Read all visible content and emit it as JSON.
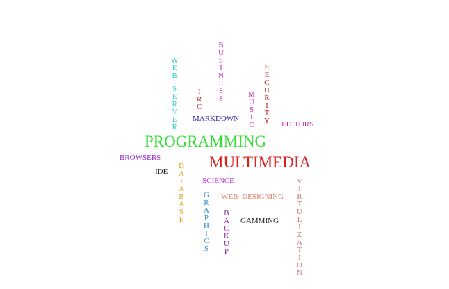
{
  "words": [
    {
      "id": "programming",
      "text": "PROGRAMMING",
      "color": "#33e033",
      "orientation": "horizontal"
    },
    {
      "id": "multimedia",
      "text": "MULTIMEDIA",
      "color": "#dd1f1f",
      "orientation": "horizontal"
    },
    {
      "id": "markdown",
      "text": "MARKDOWN",
      "color": "#2222aa",
      "orientation": "horizontal"
    },
    {
      "id": "editors",
      "text": "EDITORS",
      "color": "#cc22aa",
      "orientation": "horizontal"
    },
    {
      "id": "browsers",
      "text": "BROWSERS",
      "color": "#9922cc",
      "orientation": "horizontal"
    },
    {
      "id": "ide",
      "text": "IDE",
      "color": "#222222",
      "orientation": "horizontal"
    },
    {
      "id": "science",
      "text": "SCIENCE",
      "color": "#bb22dd",
      "orientation": "horizontal"
    },
    {
      "id": "web-designing",
      "text": "WEB DESIGNING",
      "color": "#e07a6a",
      "orientation": "horizontal"
    },
    {
      "id": "gamming",
      "text": "GAMMING",
      "color": "#222222",
      "orientation": "horizontal"
    },
    {
      "id": "web-server",
      "text": "WEB SERVER",
      "color": "#33cccc",
      "orientation": "vertical"
    },
    {
      "id": "business",
      "text": "BUSINESS",
      "color": "#cc33cc",
      "orientation": "vertical"
    },
    {
      "id": "irc",
      "text": "IRC",
      "color": "#cc2222",
      "orientation": "vertical"
    },
    {
      "id": "music",
      "text": "MUSIC",
      "color": "#cc2299",
      "orientation": "vertical"
    },
    {
      "id": "security",
      "text": "SECURITY",
      "color": "#cc2222",
      "orientation": "vertical"
    },
    {
      "id": "database",
      "text": "DATABASE",
      "color": "#e0a020",
      "orientation": "vertical"
    },
    {
      "id": "graphics",
      "text": "GRAPHICS",
      "color": "#3388cc",
      "orientation": "vertical"
    },
    {
      "id": "backup",
      "text": "BACKUP",
      "color": "#882299",
      "orientation": "vertical"
    },
    {
      "id": "virtulization",
      "text": "VIRTULIZATION",
      "color": "#cc7777",
      "orientation": "vertical"
    }
  ]
}
